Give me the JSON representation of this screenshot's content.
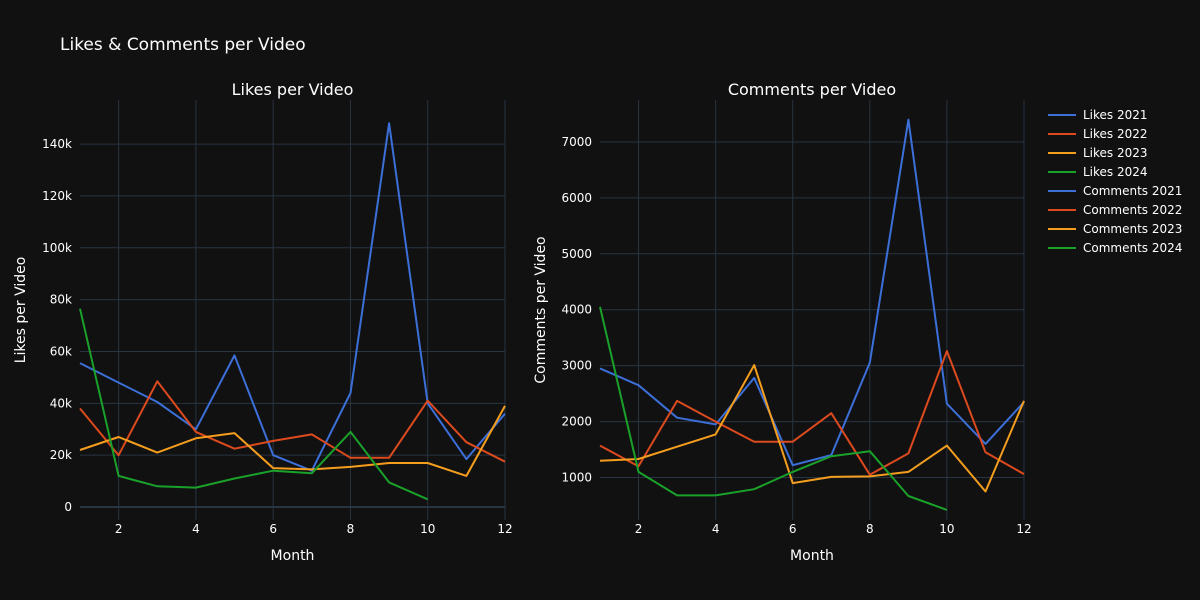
{
  "title": "Likes & Comments per Video",
  "colors": {
    "background": "#111111",
    "grid": "#283442",
    "series": [
      "#3c6fd8",
      "#dc4a1e",
      "#f59e1e",
      "#1aa12a"
    ]
  },
  "chart_data": [
    {
      "type": "line",
      "title": "Likes per Video",
      "xlabel": "Month",
      "ylabel": "Likes per Video",
      "xlim": [
        1,
        12
      ],
      "ylim": [
        -5000,
        157000
      ],
      "xticks": [
        2,
        4,
        6,
        8,
        10,
        12
      ],
      "yticks": [
        0,
        20000,
        40000,
        60000,
        80000,
        100000,
        120000,
        140000
      ],
      "ytick_labels": [
        "0",
        "20k",
        "40k",
        "60k",
        "80k",
        "100k",
        "120k",
        "140k"
      ],
      "x": [
        1,
        2,
        3,
        4,
        5,
        6,
        7,
        8,
        9,
        10,
        11,
        12
      ],
      "series": [
        {
          "name": "Likes 2021",
          "values": [
            55500,
            48000,
            40500,
            30000,
            58500,
            20000,
            14000,
            44000,
            148000,
            40000,
            18500,
            36000
          ]
        },
        {
          "name": "Likes 2022",
          "values": [
            38000,
            20000,
            48500,
            29000,
            22500,
            25500,
            28000,
            19000,
            19000,
            41000,
            25000,
            17500
          ]
        },
        {
          "name": "Likes 2023",
          "values": [
            22000,
            27000,
            21000,
            26500,
            28500,
            15000,
            14500,
            15500,
            17000,
            17000,
            12000,
            39000
          ]
        },
        {
          "name": "Likes 2024",
          "values": [
            76500,
            12000,
            8000,
            7500,
            11000,
            14000,
            13000,
            29000,
            9500,
            3000,
            null,
            null
          ]
        }
      ]
    },
    {
      "type": "line",
      "title": "Comments per Video",
      "xlabel": "Month",
      "ylabel": "Comments per Video",
      "xlim": [
        1,
        12
      ],
      "ylim": [
        240,
        7750
      ],
      "xticks": [
        2,
        4,
        6,
        8,
        10,
        12
      ],
      "yticks": [
        1000,
        2000,
        3000,
        4000,
        5000,
        6000,
        7000
      ],
      "ytick_labels": [
        "1000",
        "2000",
        "3000",
        "4000",
        "5000",
        "6000",
        "7000"
      ],
      "x": [
        1,
        2,
        3,
        4,
        5,
        6,
        7,
        8,
        9,
        10,
        11,
        12
      ],
      "series": [
        {
          "name": "Comments 2021",
          "values": [
            2950,
            2650,
            2070,
            1950,
            2780,
            1220,
            1400,
            3050,
            7400,
            2320,
            1600,
            2350
          ]
        },
        {
          "name": "Comments 2022",
          "values": [
            1570,
            1200,
            2370,
            2000,
            1640,
            1640,
            2150,
            1050,
            1430,
            3260,
            1450,
            1060
          ]
        },
        {
          "name": "Comments 2023",
          "values": [
            1300,
            1330,
            1550,
            1770,
            3010,
            900,
            1010,
            1020,
            1100,
            1570,
            750,
            2370
          ]
        },
        {
          "name": "Comments 2024",
          "values": [
            4050,
            1100,
            680,
            680,
            790,
            1100,
            1380,
            1470,
            670,
            420,
            null,
            null
          ]
        }
      ]
    }
  ]
}
